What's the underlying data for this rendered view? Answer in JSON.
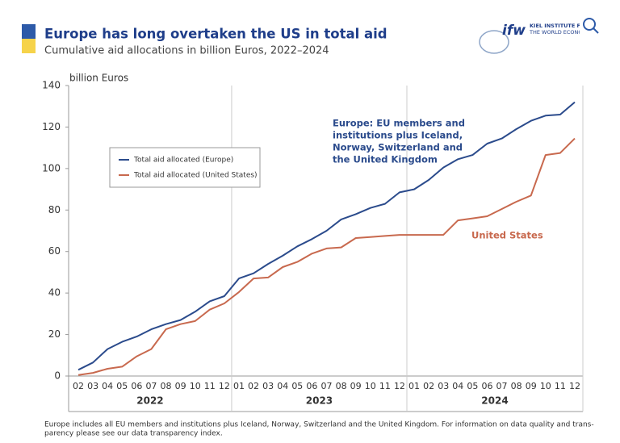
{
  "chart_data": {
    "type": "line",
    "title": "Europe has long overtaken the US in total aid",
    "subtitle": "Cumulative aid allocations in billion Euros, 2022–2024",
    "y_axis_label": "billion Euros",
    "logo": {
      "mark": "ifw",
      "lines": [
        "KIEL INSTITUTE FOR",
        "THE WORLD ECONOMY"
      ]
    },
    "categories": [
      "02",
      "03",
      "04",
      "05",
      "06",
      "07",
      "08",
      "09",
      "10",
      "11",
      "12",
      "01",
      "02",
      "03",
      "04",
      "05",
      "06",
      "07",
      "08",
      "09",
      "10",
      "11",
      "12",
      "01",
      "02",
      "03",
      "04",
      "05",
      "06",
      "07",
      "08",
      "09",
      "10",
      "11",
      "12"
    ],
    "x_groups": [
      "2022",
      "2023",
      "2024"
    ],
    "ylim": [
      0,
      140
    ],
    "yticks": [
      0,
      20,
      40,
      60,
      80,
      100,
      120,
      140
    ],
    "grid": false,
    "legend": "upper left",
    "series": [
      {
        "name": "Total aid allocated (Europe)",
        "color": "#2b4b8c",
        "values": [
          3,
          6.5,
          13,
          16.5,
          19,
          22.5,
          25,
          27,
          31,
          36,
          38.5,
          47,
          49.5,
          54,
          58,
          62.5,
          66,
          70,
          75.5,
          78,
          81,
          83,
          88.5,
          90,
          94.5,
          100.5,
          104.5,
          106.5,
          112,
          114.5,
          119,
          123,
          125.5,
          126,
          132
        ]
      },
      {
        "name": "Total aid allocated (United States)",
        "color": "#c8694e",
        "values": [
          0.5,
          1.5,
          3.5,
          4.5,
          9.5,
          13,
          22.5,
          25,
          26.5,
          32,
          35,
          40.5,
          47,
          47.5,
          52.5,
          55,
          59,
          61.5,
          62,
          66.5,
          67,
          67.5,
          68,
          68,
          68,
          68,
          75,
          76,
          77,
          80.5,
          84,
          87,
          106.5,
          107.5,
          114.5
        ]
      }
    ],
    "annotations": [
      {
        "lines": [
          "Europe: EU members and",
          "institutions plus Iceland,",
          "Norway, Switzerland and",
          "the United Kingdom"
        ],
        "color": "#2b4b8c"
      },
      {
        "lines": [
          "United States"
        ],
        "color": "#c8694e"
      }
    ],
    "footnote": [
      "Europe includes all EU members and institutions plus Iceland, Norway, Switzerland and the United Kingdom. For information on data quality and trans-",
      "parency please see our data transparency index."
    ]
  }
}
